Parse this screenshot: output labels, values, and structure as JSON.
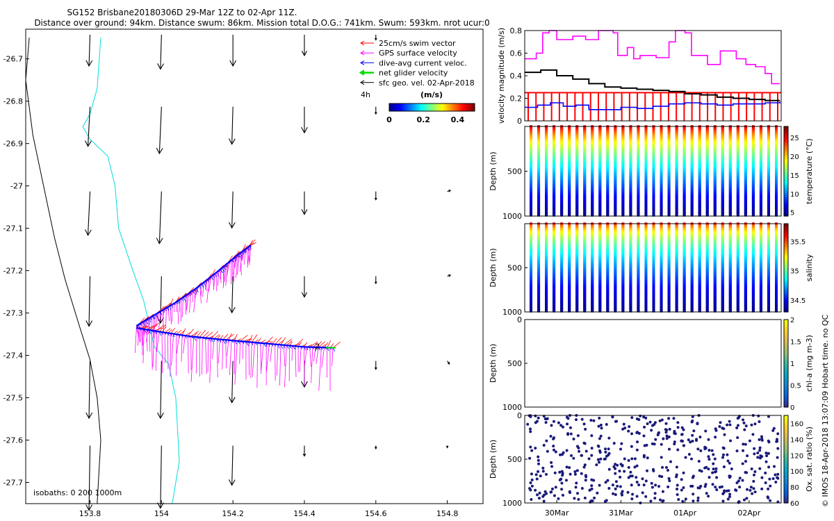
{
  "header": {
    "title_line1": "SG152 Brisbane20180306D 29-Mar 12Z to 02-Apr 11Z.",
    "title_line2": "Distance over ground: 94km. Distance swum: 86km. Mission total D.O.G.: 741km. Swum: 593km. nrot ucur:0"
  },
  "colors": {
    "swim": "#ff0000",
    "gps": "#ff00ff",
    "current": "#0000ff",
    "net": "#00dd00",
    "geo": "#000000",
    "isobath_0": "#000000",
    "isobath_200": "#00dddd",
    "isobath_1000": "#0000ff",
    "oxygen": "#1a1a7a"
  },
  "colorbar_scales": {
    "jet": [
      "#00008f",
      "#0000ff",
      "#007fff",
      "#00ffff",
      "#7fff7f",
      "#ffff00",
      "#ff7f00",
      "#ff0000",
      "#7f0000"
    ],
    "parula": [
      "#352a87",
      "#0363e1",
      "#1485d4",
      "#06a7c6",
      "#38b99e",
      "#92bf73",
      "#d9ba56",
      "#fcce2e",
      "#f9fb0e"
    ]
  },
  "chart_data": [
    {
      "type": "scatter",
      "name": "map",
      "xlim": [
        153.62,
        154.9
      ],
      "ylim": [
        -27.75,
        -26.63
      ],
      "xticks": [
        153.8,
        154,
        154.2,
        154.4,
        154.6,
        154.8
      ],
      "yticks": [
        -26.7,
        -26.8,
        -26.9,
        -27,
        -27.1,
        -27.2,
        -27.3,
        -27.4,
        -27.5,
        -27.6,
        -27.7
      ],
      "legend": {
        "position": "top-right",
        "entries": [
          {
            "label": "25cm/s swim vector",
            "color_key": "swim"
          },
          {
            "label": "GPS surface velocity",
            "color_key": "gps"
          },
          {
            "label": "dive-avg current veloc.",
            "color_key": "current"
          },
          {
            "label": "net glider velocity",
            "color_key": "net"
          },
          {
            "label": "sfc geo. vel. 02-Apr-2018",
            "color_key": "geo"
          }
        ],
        "interval_label": "4h",
        "colorbar_unit": "(m/s)",
        "colorbar_ticks": [
          0,
          0.2,
          0.4
        ]
      },
      "isobaths_label": "isobaths: 0   200   1000m",
      "waypoint_labels": [
        "2"
      ],
      "track_outbound": [
        [
          153.93,
          -27.33
        ],
        [
          153.98,
          -27.305
        ],
        [
          154.04,
          -27.275
        ],
        [
          154.1,
          -27.24
        ],
        [
          154.16,
          -27.2
        ],
        [
          154.21,
          -27.165
        ],
        [
          154.25,
          -27.14
        ]
      ],
      "track_return": [
        [
          153.93,
          -27.335
        ],
        [
          154.0,
          -27.345
        ],
        [
          154.08,
          -27.355
        ],
        [
          154.16,
          -27.362
        ],
        [
          154.24,
          -27.368
        ],
        [
          154.32,
          -27.374
        ],
        [
          154.4,
          -27.38
        ],
        [
          154.48,
          -27.382
        ]
      ],
      "isobath_0": [
        [
          153.63,
          -26.65
        ],
        [
          153.62,
          -26.75
        ],
        [
          153.64,
          -26.88
        ],
        [
          153.67,
          -27.0
        ],
        [
          153.7,
          -27.12
        ],
        [
          153.73,
          -27.22
        ],
        [
          153.77,
          -27.33
        ],
        [
          153.8,
          -27.41
        ],
        [
          153.82,
          -27.5
        ],
        [
          153.83,
          -27.6
        ],
        [
          153.82,
          -27.75
        ]
      ],
      "isobath_200": [
        [
          153.83,
          -26.65
        ],
        [
          153.82,
          -26.77
        ],
        [
          153.8,
          -26.83
        ],
        [
          153.78,
          -26.86
        ],
        [
          153.8,
          -26.89
        ],
        [
          153.85,
          -26.93
        ],
        [
          153.87,
          -27.0
        ],
        [
          153.88,
          -27.1
        ],
        [
          153.92,
          -27.2
        ],
        [
          153.95,
          -27.27
        ],
        [
          153.98,
          -27.38
        ],
        [
          154.02,
          -27.42
        ],
        [
          154.04,
          -27.5
        ],
        [
          154.05,
          -27.65
        ],
        [
          154.03,
          -27.75
        ]
      ],
      "geo_vectors": [
        {
          "lon": 153.8,
          "lat": -26.63,
          "u": -0.01,
          "v": -0.3
        },
        {
          "lon": 154.0,
          "lat": -26.63,
          "u": -0.01,
          "v": -0.33
        },
        {
          "lon": 154.2,
          "lat": -26.63,
          "u": 0.0,
          "v": -0.3
        },
        {
          "lon": 154.4,
          "lat": -26.63,
          "u": 0.0,
          "v": -0.2
        },
        {
          "lon": 154.6,
          "lat": -26.63,
          "u": 0.0,
          "v": -0.05
        },
        {
          "lon": 153.8,
          "lat": -26.8,
          "u": -0.02,
          "v": -0.38
        },
        {
          "lon": 154.0,
          "lat": -26.8,
          "u": -0.02,
          "v": -0.45
        },
        {
          "lon": 154.2,
          "lat": -26.8,
          "u": -0.01,
          "v": -0.36
        },
        {
          "lon": 154.4,
          "lat": -26.8,
          "u": 0.0,
          "v": -0.25
        },
        {
          "lon": 154.6,
          "lat": -26.8,
          "u": 0.0,
          "v": -0.07
        },
        {
          "lon": 153.8,
          "lat": -27.0,
          "u": -0.02,
          "v": -0.42
        },
        {
          "lon": 154.0,
          "lat": -27.0,
          "u": -0.02,
          "v": -0.5
        },
        {
          "lon": 154.2,
          "lat": -27.0,
          "u": -0.01,
          "v": -0.35
        },
        {
          "lon": 154.4,
          "lat": -27.0,
          "u": 0.0,
          "v": -0.22
        },
        {
          "lon": 154.6,
          "lat": -27.0,
          "u": 0.0,
          "v": -0.08
        },
        {
          "lon": 154.8,
          "lat": -27.0,
          "u": 0.03,
          "v": 0.01
        },
        {
          "lon": 153.8,
          "lat": -27.2,
          "u": -0.01,
          "v": -0.48
        },
        {
          "lon": 154.0,
          "lat": -27.2,
          "u": -0.01,
          "v": -0.45
        },
        {
          "lon": 154.2,
          "lat": -27.2,
          "u": -0.01,
          "v": -0.35
        },
        {
          "lon": 154.4,
          "lat": -27.2,
          "u": 0.0,
          "v": -0.2
        },
        {
          "lon": 154.6,
          "lat": -27.2,
          "u": 0.0,
          "v": -0.07
        },
        {
          "lon": 154.8,
          "lat": -27.2,
          "u": 0.03,
          "v": 0.01
        },
        {
          "lon": 153.8,
          "lat": -27.4,
          "u": -0.01,
          "v": -0.55
        },
        {
          "lon": 154.0,
          "lat": -27.4,
          "u": -0.01,
          "v": -0.55
        },
        {
          "lon": 154.2,
          "lat": -27.4,
          "u": -0.01,
          "v": -0.4
        },
        {
          "lon": 154.4,
          "lat": -27.4,
          "u": 0.0,
          "v": -0.25
        },
        {
          "lon": 154.6,
          "lat": -27.4,
          "u": 0.0,
          "v": -0.08
        },
        {
          "lon": 154.8,
          "lat": -27.4,
          "u": 0.02,
          "v": -0.03
        },
        {
          "lon": 153.8,
          "lat": -27.6,
          "u": -0.01,
          "v": -0.62
        },
        {
          "lon": 154.0,
          "lat": -27.6,
          "u": -0.01,
          "v": -0.6
        },
        {
          "lon": 154.2,
          "lat": -27.6,
          "u": -0.01,
          "v": -0.38
        },
        {
          "lon": 154.4,
          "lat": -27.6,
          "u": 0.0,
          "v": -0.1
        },
        {
          "lon": 154.6,
          "lat": -27.6,
          "u": 0.0,
          "v": -0.03
        },
        {
          "lon": 154.8,
          "lat": -27.6,
          "u": 0.0,
          "v": -0.02
        }
      ]
    },
    {
      "type": "line",
      "name": "velocity-magnitude",
      "ylabel": "velocity magnitude (m/s)",
      "ylim": [
        0,
        0.8
      ],
      "yticks": [
        0,
        0.2,
        0.4,
        0.6,
        0.8
      ],
      "xlim": [
        0,
        4
      ],
      "series": [
        {
          "color_key": "gps",
          "values": [
            [
              0,
              0.55
            ],
            [
              0.1,
              0.55
            ],
            [
              0.18,
              0.6
            ],
            [
              0.28,
              0.78
            ],
            [
              0.38,
              0.8
            ],
            [
              0.5,
              0.72
            ],
            [
              0.75,
              0.75
            ],
            [
              0.95,
              0.72
            ],
            [
              1.15,
              0.8
            ],
            [
              1.38,
              0.78
            ],
            [
              1.45,
              0.58
            ],
            [
              1.6,
              0.65
            ],
            [
              1.7,
              0.55
            ],
            [
              1.8,
              0.58
            ],
            [
              2.05,
              0.56
            ],
            [
              2.25,
              0.7
            ],
            [
              2.35,
              0.8
            ],
            [
              2.5,
              0.78
            ],
            [
              2.6,
              0.58
            ],
            [
              2.85,
              0.5
            ],
            [
              3.05,
              0.62
            ],
            [
              3.3,
              0.55
            ],
            [
              3.45,
              0.5
            ],
            [
              3.6,
              0.48
            ],
            [
              3.75,
              0.42
            ],
            [
              3.85,
              0.33
            ],
            [
              3.98,
              0.33
            ]
          ]
        },
        {
          "color_key": "geo",
          "values": [
            [
              0,
              0.43
            ],
            [
              0.25,
              0.45
            ],
            [
              0.5,
              0.4
            ],
            [
              0.75,
              0.37
            ],
            [
              1.0,
              0.33
            ],
            [
              1.25,
              0.3
            ],
            [
              1.5,
              0.29
            ],
            [
              1.75,
              0.28
            ],
            [
              2.0,
              0.27
            ],
            [
              2.25,
              0.26
            ],
            [
              2.5,
              0.24
            ],
            [
              2.75,
              0.23
            ],
            [
              3.0,
              0.21
            ],
            [
              3.25,
              0.2
            ],
            [
              3.5,
              0.19
            ],
            [
              3.75,
              0.18
            ],
            [
              3.98,
              0.18
            ]
          ]
        },
        {
          "color_key": "current",
          "values": [
            [
              0,
              0.12
            ],
            [
              0.2,
              0.14
            ],
            [
              0.4,
              0.16
            ],
            [
              0.6,
              0.13
            ],
            [
              0.8,
              0.14
            ],
            [
              1.0,
              0.1
            ],
            [
              1.25,
              0.1
            ],
            [
              1.5,
              0.12
            ],
            [
              1.75,
              0.11
            ],
            [
              2.0,
              0.13
            ],
            [
              2.25,
              0.15
            ],
            [
              2.5,
              0.16
            ],
            [
              2.75,
              0.15
            ],
            [
              3.0,
              0.14
            ],
            [
              3.25,
              0.15
            ],
            [
              3.5,
              0.15
            ],
            [
              3.75,
              0.16
            ],
            [
              3.98,
              0.17
            ]
          ]
        }
      ],
      "swim_level": 0.25
    },
    {
      "type": "scatter",
      "name": "temperature-section",
      "ylabel": "Depth (m)",
      "yticks": [
        500,
        1000
      ],
      "ylim": [
        0,
        1000
      ],
      "colorbar_label": "temperature (°C)",
      "colorbar_ticks": [
        5,
        10,
        15,
        20,
        25
      ],
      "colorbar_range": [
        4,
        28
      ],
      "scale": "jet"
    },
    {
      "type": "scatter",
      "name": "salinity-section",
      "ylabel": "Depth (m)",
      "yticks": [
        500,
        1000
      ],
      "ylim": [
        0,
        1000
      ],
      "colorbar_label": "salinity",
      "colorbar_ticks": [
        34.5,
        35,
        35.5
      ],
      "colorbar_range": [
        34.3,
        35.8
      ],
      "scale": "jet"
    },
    {
      "type": "scatter",
      "name": "chlorophyll-section",
      "ylabel": "Depth (m)",
      "yticks": [
        0,
        500,
        1000
      ],
      "ylim": [
        0,
        1000
      ],
      "colorbar_label": "chl-a (mg m-3)",
      "colorbar_ticks": [
        0,
        0.5,
        1,
        1.5,
        2
      ],
      "colorbar_range": [
        0,
        2
      ],
      "scale": "parula"
    },
    {
      "type": "scatter",
      "name": "oxygen-section",
      "ylabel": "Depth (m)",
      "yticks": [
        0,
        500,
        1000
      ],
      "ylim": [
        0,
        1000
      ],
      "colorbar_label": "Ox. sat. ratio (%)",
      "colorbar_ticks": [
        60,
        80,
        100,
        120,
        140,
        160
      ],
      "colorbar_range": [
        60,
        170
      ],
      "scale": "parula",
      "xtick_labels": [
        "30Mar",
        "31Mar",
        "01Apr",
        "02Apr"
      ],
      "xticks": [
        0.5,
        1.5,
        2.5,
        3.5
      ],
      "xlim": [
        0,
        4
      ]
    }
  ],
  "footer": {
    "stamp": "© IMOS 18-Apr-2018 13:07:09 Hobart time. no QC"
  }
}
